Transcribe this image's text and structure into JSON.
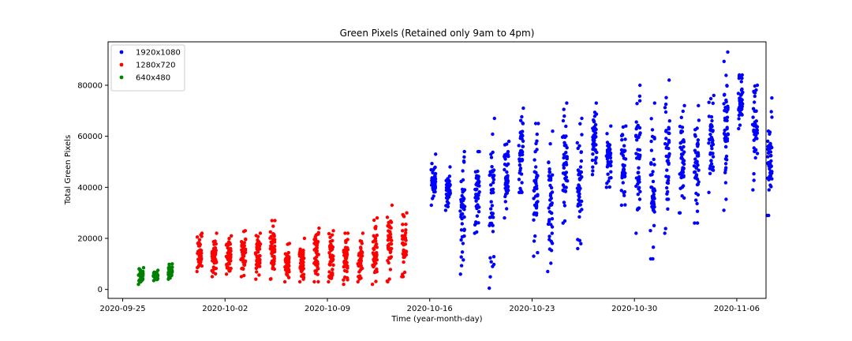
{
  "chart_data": {
    "type": "scatter",
    "title": "Green Pixels (Retained only 9am to 4pm)",
    "xlabel": "Time (year-month-day)",
    "ylabel": "Total Green Pixels",
    "x_ticks": [
      "2020-09-25",
      "2020-10-02",
      "2020-10-09",
      "2020-10-16",
      "2020-10-23",
      "2020-10-30",
      "2020-11-06"
    ],
    "y_ticks": [
      "0",
      "20000",
      "40000",
      "60000",
      "80000"
    ],
    "xlim": [
      "2020-09-24",
      "2020-11-08"
    ],
    "ylim": [
      -3500,
      97000
    ],
    "legend_position": "upper-left",
    "grid": false,
    "series": [
      {
        "name": "1920x1080",
        "color": "#0000ff",
        "daily_ranges": [
          {
            "date": "2020-10-16",
            "min": 33000,
            "max": 53000
          },
          {
            "date": "2020-10-17",
            "min": 31000,
            "max": 48000
          },
          {
            "date": "2020-10-18",
            "min": 6000,
            "max": 54000
          },
          {
            "date": "2020-10-19",
            "min": 22000,
            "max": 54000
          },
          {
            "date": "2020-10-20",
            "min": 500,
            "max": 67000
          },
          {
            "date": "2020-10-21",
            "min": 28000,
            "max": 58000
          },
          {
            "date": "2020-10-22",
            "min": 38000,
            "max": 71000
          },
          {
            "date": "2020-10-23",
            "min": 13000,
            "max": 65000
          },
          {
            "date": "2020-10-24",
            "min": 7000,
            "max": 62000
          },
          {
            "date": "2020-10-25",
            "min": 26000,
            "max": 73000
          },
          {
            "date": "2020-10-26",
            "min": 16000,
            "max": 67000
          },
          {
            "date": "2020-10-27",
            "min": 45000,
            "max": 73000
          },
          {
            "date": "2020-10-28",
            "min": 40000,
            "max": 64000
          },
          {
            "date": "2020-10-29",
            "min": 33000,
            "max": 64000
          },
          {
            "date": "2020-10-30",
            "min": 22000,
            "max": 80000
          },
          {
            "date": "2020-10-31",
            "min": 12000,
            "max": 73000
          },
          {
            "date": "2020-11-01",
            "min": 22000,
            "max": 82000
          },
          {
            "date": "2020-11-02",
            "min": 30000,
            "max": 72000
          },
          {
            "date": "2020-11-03",
            "min": 26000,
            "max": 72000
          },
          {
            "date": "2020-11-04",
            "min": 38000,
            "max": 76000
          },
          {
            "date": "2020-11-05",
            "min": 31000,
            "max": 93000
          },
          {
            "date": "2020-11-06",
            "min": 63000,
            "max": 84000
          },
          {
            "date": "2020-11-07",
            "min": 39000,
            "max": 80000
          },
          {
            "date": "2020-11-08",
            "min": 29000,
            "max": 75000
          }
        ]
      },
      {
        "name": "1280x720",
        "color": "#ff0000",
        "daily_ranges": [
          {
            "date": "2020-09-30",
            "min": 7000,
            "max": 22000
          },
          {
            "date": "2020-10-01",
            "min": 5000,
            "max": 22000
          },
          {
            "date": "2020-10-02",
            "min": 6000,
            "max": 21000
          },
          {
            "date": "2020-10-03",
            "min": 5000,
            "max": 23000
          },
          {
            "date": "2020-10-04",
            "min": 4000,
            "max": 22000
          },
          {
            "date": "2020-10-05",
            "min": 4000,
            "max": 27000
          },
          {
            "date": "2020-10-06",
            "min": 3000,
            "max": 18000
          },
          {
            "date": "2020-10-07",
            "min": 3000,
            "max": 20000
          },
          {
            "date": "2020-10-08",
            "min": 3000,
            "max": 24000
          },
          {
            "date": "2020-10-09",
            "min": 3000,
            "max": 23000
          },
          {
            "date": "2020-10-10",
            "min": 2000,
            "max": 22000
          },
          {
            "date": "2020-10-11",
            "min": 3000,
            "max": 22000
          },
          {
            "date": "2020-10-12",
            "min": 2000,
            "max": 28000
          },
          {
            "date": "2020-10-13",
            "min": 3000,
            "max": 33000
          },
          {
            "date": "2020-10-14",
            "min": 5000,
            "max": 30000
          }
        ]
      },
      {
        "name": "640x480",
        "color": "#008000",
        "daily_ranges": [
          {
            "date": "2020-09-26",
            "min": 2000,
            "max": 8500
          },
          {
            "date": "2020-09-27",
            "min": 3500,
            "max": 7500
          },
          {
            "date": "2020-09-28",
            "min": 4000,
            "max": 10000
          }
        ]
      }
    ]
  }
}
